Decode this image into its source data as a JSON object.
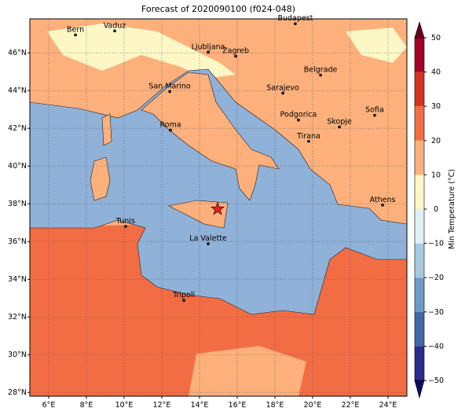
{
  "chart_data": {
    "type": "map",
    "title": "Forecast of 2020090100 (f024-048)",
    "xlim": [
      5,
      25
    ],
    "ylim": [
      27.8,
      47.8
    ],
    "xticks": [
      {
        "value": 6,
        "label": "6°E"
      },
      {
        "value": 8,
        "label": "8°E"
      },
      {
        "value": 10,
        "label": "10°E"
      },
      {
        "value": 12,
        "label": "12°E"
      },
      {
        "value": 14,
        "label": "14°E"
      },
      {
        "value": 16,
        "label": "16°E"
      },
      {
        "value": 18,
        "label": "18°E"
      },
      {
        "value": 20,
        "label": "20°E"
      },
      {
        "value": 22,
        "label": "22°E"
      },
      {
        "value": 24,
        "label": "24°E"
      }
    ],
    "yticks": [
      {
        "value": 28,
        "label": "28°N"
      },
      {
        "value": 30,
        "label": "30°N"
      },
      {
        "value": 32,
        "label": "32°N"
      },
      {
        "value": 34,
        "label": "34°N"
      },
      {
        "value": 36,
        "label": "36°N"
      },
      {
        "value": 38,
        "label": "38°N"
      },
      {
        "value": 40,
        "label": "40°N"
      },
      {
        "value": 42,
        "label": "42°N"
      },
      {
        "value": 44,
        "label": "44°N"
      },
      {
        "value": 46,
        "label": "46°N"
      }
    ],
    "grid": true,
    "cities": [
      {
        "name": "Bern",
        "lon": 7.42,
        "lat": 46.95
      },
      {
        "name": "Vaduz",
        "lon": 9.5,
        "lat": 47.16
      },
      {
        "name": "Budapest",
        "lon": 19.08,
        "lat": 47.54
      },
      {
        "name": "Ljubljana",
        "lon": 14.46,
        "lat": 46.03
      },
      {
        "name": "Zagreb",
        "lon": 15.92,
        "lat": 45.82
      },
      {
        "name": "Belgrade",
        "lon": 20.42,
        "lat": 44.82
      },
      {
        "name": "Sarajevo",
        "lon": 18.42,
        "lat": 43.86
      },
      {
        "name": "San Marino",
        "lon": 12.42,
        "lat": 43.95
      },
      {
        "name": "Sofia",
        "lon": 23.29,
        "lat": 42.69
      },
      {
        "name": "Podgorica",
        "lon": 19.25,
        "lat": 42.44
      },
      {
        "name": "Skopje",
        "lon": 21.42,
        "lat": 42.07
      },
      {
        "name": "Roma",
        "lon": 12.46,
        "lat": 41.9
      },
      {
        "name": "Tirana",
        "lon": 19.79,
        "lat": 41.31
      },
      {
        "name": "Athens",
        "lon": 23.71,
        "lat": 37.93
      },
      {
        "name": "Tunis",
        "lon": 10.08,
        "lat": 36.8
      },
      {
        "name": "La Valette",
        "lon": 14.46,
        "lat": 35.88
      },
      {
        "name": "Tripoli",
        "lon": 13.17,
        "lat": 32.88
      }
    ],
    "marker": {
      "lon": 14.96,
      "lat": 37.72,
      "color": "#e8201c"
    },
    "colorbar": {
      "label": "Min Temperature (°C)",
      "clim": [
        -50,
        50
      ],
      "levels": [
        -50,
        -40,
        -30,
        -20,
        -10,
        0,
        10,
        20,
        30,
        40,
        50
      ],
      "colors": [
        "#2a2d8c",
        "#4169a8",
        "#6a9ac6",
        "#a6cbe0",
        "#e0f1f5",
        "#fdf7c6",
        "#fdb07b",
        "#f26d44",
        "#d7301f",
        "#a50026"
      ],
      "under_color": "#0b0b5e",
      "over_color": "#6b001f",
      "ticks": [
        {
          "value": -50,
          "label": "−50"
        },
        {
          "value": -40,
          "label": "−40"
        },
        {
          "value": -30,
          "label": "−30"
        },
        {
          "value": -20,
          "label": "−20"
        },
        {
          "value": -10,
          "label": "−10"
        },
        0,
        10,
        20,
        30,
        40,
        50
      ]
    }
  }
}
